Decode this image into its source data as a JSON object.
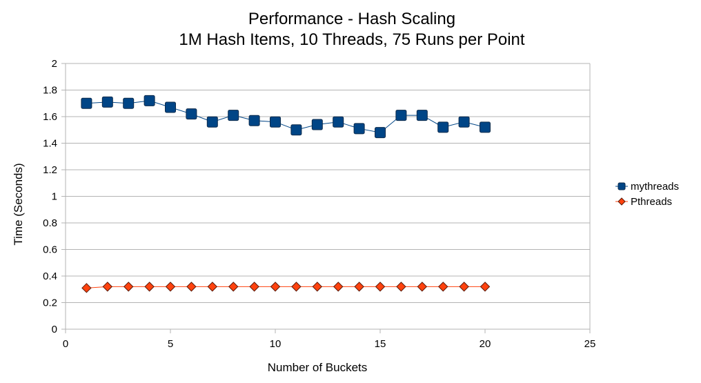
{
  "chart_data": {
    "type": "line",
    "title": "Performance - Hash Scaling",
    "subtitle": "1M Hash Items, 10 Threads, 75 Runs per Point",
    "xlabel": "Number of Buckets",
    "ylabel": "Time (Seconds)",
    "xlim": [
      0,
      25
    ],
    "ylim": [
      0,
      2
    ],
    "xticks": [
      0,
      5,
      10,
      15,
      20,
      25
    ],
    "yticks": [
      0,
      0.2,
      0.4,
      0.6,
      0.8,
      1,
      1.2,
      1.4,
      1.6,
      1.8,
      2
    ],
    "grid": "horizontal",
    "legend_position": "right",
    "x": [
      1,
      2,
      3,
      4,
      5,
      6,
      7,
      8,
      9,
      10,
      11,
      12,
      13,
      14,
      15,
      16,
      17,
      18,
      19,
      20
    ],
    "series": [
      {
        "name": "mythreads",
        "marker": "square",
        "color": "#004586",
        "values": [
          1.7,
          1.71,
          1.7,
          1.72,
          1.67,
          1.62,
          1.56,
          1.61,
          1.57,
          1.56,
          1.5,
          1.54,
          1.56,
          1.51,
          1.48,
          1.61,
          1.61,
          1.52,
          1.56,
          1.52
        ]
      },
      {
        "name": "Pthreads",
        "marker": "diamond",
        "color": "#ff420e",
        "values": [
          0.31,
          0.32,
          0.32,
          0.32,
          0.32,
          0.32,
          0.32,
          0.32,
          0.32,
          0.32,
          0.32,
          0.32,
          0.32,
          0.32,
          0.32,
          0.32,
          0.32,
          0.32,
          0.32,
          0.32
        ]
      }
    ]
  }
}
